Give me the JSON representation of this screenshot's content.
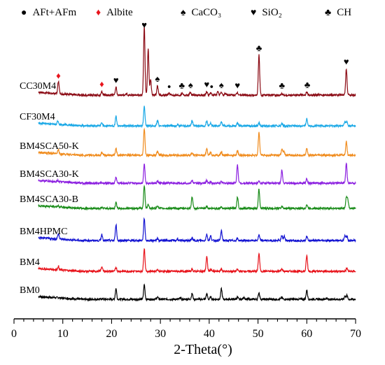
{
  "chart_data": {
    "type": "line",
    "xlabel": "2-Theta(°)",
    "ylabel": "",
    "xlim": [
      0,
      70
    ],
    "xticks": [
      0,
      10,
      20,
      30,
      40,
      50,
      60,
      70
    ],
    "grid": false,
    "legend": {
      "placement": "top",
      "entries": [
        {
          "symbol": "●",
          "label": "AFt+AFm",
          "color": "#000000"
        },
        {
          "symbol": "♦",
          "label": "Albite",
          "color": "#e8141c"
        },
        {
          "symbol": "♠",
          "label": "CaCO₃",
          "color": "#000000"
        },
        {
          "symbol": "♥",
          "label": "SiO₂",
          "color": "#000000"
        },
        {
          "symbol": "♣",
          "label": "CH",
          "color": "#000000"
        }
      ]
    },
    "series": [
      {
        "name": "BM0",
        "color": "#000000",
        "x_start": 5,
        "x_end": 70,
        "peaks": [
          [
            9,
            0.05
          ],
          [
            18.1,
            0.07
          ],
          [
            20.9,
            1.4
          ],
          [
            26.7,
            1.9
          ],
          [
            29.4,
            0.3
          ],
          [
            34.1,
            0.2
          ],
          [
            36.5,
            0.75
          ],
          [
            39.5,
            0.7
          ],
          [
            40.3,
            0.3
          ],
          [
            42.5,
            1.35
          ],
          [
            45.8,
            0.25
          ],
          [
            47.1,
            0.3
          ],
          [
            50.2,
            0.85
          ],
          [
            54.9,
            0.25
          ],
          [
            60,
            1.2
          ],
          [
            64,
            0.15
          ],
          [
            67.8,
            0.4
          ],
          [
            68.2,
            0.5
          ]
        ]
      },
      {
        "name": "BM4",
        "color": "#e8141c",
        "x_start": 5,
        "x_end": 70,
        "peaks": [
          [
            9.1,
            0.45
          ],
          [
            18,
            0.6
          ],
          [
            20.9,
            0.5
          ],
          [
            26.7,
            3.0
          ],
          [
            29.4,
            0.25
          ],
          [
            36.5,
            0.3
          ],
          [
            39.5,
            1.9
          ],
          [
            40.3,
            0.25
          ],
          [
            42.5,
            0.3
          ],
          [
            45.8,
            0.25
          ],
          [
            50.2,
            2.35
          ],
          [
            54.9,
            0.3
          ],
          [
            60,
            2.05
          ],
          [
            68.2,
            0.4
          ]
        ]
      },
      {
        "name": "BM4HPMC",
        "color": "#1414d2",
        "x_start": 5,
        "x_end": 70,
        "peaks": [
          [
            9.1,
            0.7
          ],
          [
            18,
            0.8
          ],
          [
            20.9,
            2.1
          ],
          [
            26.7,
            2.9
          ],
          [
            29.4,
            0.3
          ],
          [
            33.5,
            0.2
          ],
          [
            36.5,
            0.35
          ],
          [
            39.5,
            0.8
          ],
          [
            40.3,
            0.6
          ],
          [
            42.5,
            1.25
          ],
          [
            45.8,
            0.25
          ],
          [
            50.2,
            0.7
          ],
          [
            54.9,
            0.65
          ],
          [
            55.4,
            0.55
          ],
          [
            60,
            0.55
          ],
          [
            67.8,
            0.6
          ],
          [
            68.2,
            0.6
          ]
        ]
      },
      {
        "name": "BM4SCA30-B",
        "color": "#1a8c1a",
        "x_start": 5,
        "x_end": 70,
        "peaks": [
          [
            9,
            0.15
          ],
          [
            18,
            0.1
          ],
          [
            20.9,
            0.8
          ],
          [
            26.7,
            3.0
          ],
          [
            27.5,
            0.6
          ],
          [
            29.4,
            0.35
          ],
          [
            36.5,
            1.55
          ],
          [
            39.5,
            0.3
          ],
          [
            42.5,
            0.2
          ],
          [
            45.8,
            1.5
          ],
          [
            50.2,
            2.5
          ],
          [
            54.9,
            0.25
          ],
          [
            60,
            0.5
          ],
          [
            68.1,
            1.4
          ],
          [
            68.4,
            1.15
          ]
        ]
      },
      {
        "name": "BM4SCA30-K",
        "color": "#8c20e0",
        "x_start": 5,
        "x_end": 70,
        "peaks": [
          [
            9,
            0.15
          ],
          [
            18,
            0.1
          ],
          [
            20.9,
            0.8
          ],
          [
            26.7,
            2.5
          ],
          [
            29.4,
            0.25
          ],
          [
            36.5,
            0.35
          ],
          [
            39.5,
            0.35
          ],
          [
            40.3,
            0.2
          ],
          [
            42.5,
            0.25
          ],
          [
            45.8,
            2.4
          ],
          [
            50.2,
            0.35
          ],
          [
            54.9,
            1.75
          ],
          [
            60,
            0.6
          ],
          [
            68.1,
            2.6
          ]
        ]
      },
      {
        "name": "BM4SCA50-K",
        "color": "#f08c1e",
        "x_start": 5,
        "x_end": 70,
        "peaks": [
          [
            9.1,
            0.55
          ],
          [
            18,
            0.35
          ],
          [
            20.9,
            0.85
          ],
          [
            26.7,
            3.5
          ],
          [
            29.4,
            0.5
          ],
          [
            36.5,
            0.35
          ],
          [
            39.5,
            0.8
          ],
          [
            40.3,
            0.4
          ],
          [
            42.5,
            0.4
          ],
          [
            45.8,
            0.6
          ],
          [
            50.2,
            3.0
          ],
          [
            54.9,
            0.75
          ],
          [
            55.3,
            0.5
          ],
          [
            60,
            0.9
          ],
          [
            68.1,
            1.8
          ]
        ]
      },
      {
        "name": "CF30M4",
        "color": "#19a8e6",
        "x_start": 5,
        "x_end": 70,
        "peaks": [
          [
            9,
            0.45
          ],
          [
            18,
            0.4
          ],
          [
            20.9,
            1.25
          ],
          [
            26.7,
            2.6
          ],
          [
            29.4,
            0.7
          ],
          [
            33.5,
            0.2
          ],
          [
            36.5,
            0.65
          ],
          [
            39.5,
            0.6
          ],
          [
            40.3,
            0.35
          ],
          [
            42.5,
            0.5
          ],
          [
            45.8,
            0.4
          ],
          [
            50.2,
            0.4
          ],
          [
            54.9,
            0.3
          ],
          [
            60,
            0.95
          ],
          [
            67.8,
            0.55
          ],
          [
            68.2,
            0.55
          ]
        ]
      },
      {
        "name": "CC30M4",
        "color": "#8b0a14",
        "x_start": 5,
        "x_end": 70,
        "peaks": [
          [
            9.1,
            1.6
          ],
          [
            18,
            0.5
          ],
          [
            20.9,
            1.0
          ],
          [
            23.1,
            0.2
          ],
          [
            26.7,
            9.0
          ],
          [
            27.5,
            6.0
          ],
          [
            28,
            2.0
          ],
          [
            29.4,
            1.2
          ],
          [
            31.8,
            0.3
          ],
          [
            34.5,
            0.3
          ],
          [
            36.1,
            0.35
          ],
          [
            39.5,
            0.45
          ],
          [
            40.3,
            0.3
          ],
          [
            41.8,
            0.5
          ],
          [
            42.5,
            0.35
          ],
          [
            43.3,
            0.25
          ],
          [
            45.8,
            0.3
          ],
          [
            50.2,
            5.2
          ],
          [
            54.9,
            0.2
          ],
          [
            60,
            0.4
          ],
          [
            68.1,
            3.4
          ]
        ]
      }
    ],
    "annotations": [
      {
        "symbol": "♦",
        "color": "#e8141c",
        "x": 9.1,
        "series": "CC30M4"
      },
      {
        "symbol": "♦",
        "color": "#e8141c",
        "x": 18,
        "series": "CC30M4"
      },
      {
        "symbol": "♥",
        "color": "#000000",
        "x": 20.9,
        "series": "CC30M4"
      },
      {
        "symbol": "♥",
        "color": "#000000",
        "x": 26.7,
        "series": "CC30M4"
      },
      {
        "symbol": "♠",
        "color": "#000000",
        "x": 29.4,
        "series": "CC30M4"
      },
      {
        "symbol": "●",
        "color": "#000000",
        "x": 31.8,
        "series": "CC30M4"
      },
      {
        "symbol": "♣",
        "color": "#000000",
        "x": 34.4,
        "series": "CC30M4"
      },
      {
        "symbol": "♠",
        "color": "#000000",
        "x": 36.2,
        "series": "CC30M4"
      },
      {
        "symbol": "♥",
        "color": "#000000",
        "x": 39.5,
        "series": "CC30M4"
      },
      {
        "symbol": "●",
        "color": "#000000",
        "x": 40.5,
        "series": "CC30M4"
      },
      {
        "symbol": "♠",
        "color": "#000000",
        "x": 42.5,
        "series": "CC30M4"
      },
      {
        "symbol": "♥",
        "color": "#000000",
        "x": 45.8,
        "series": "CC30M4"
      },
      {
        "symbol": "♣",
        "color": "#000000",
        "x": 50.2,
        "series": "CC30M4"
      },
      {
        "symbol": "♣",
        "color": "#000000",
        "x": 54.9,
        "series": "CC30M4"
      },
      {
        "symbol": "♣",
        "color": "#000000",
        "x": 60.1,
        "series": "CC30M4"
      },
      {
        "symbol": "♥",
        "color": "#000000",
        "x": 68.1,
        "series": "CC30M4"
      }
    ]
  }
}
